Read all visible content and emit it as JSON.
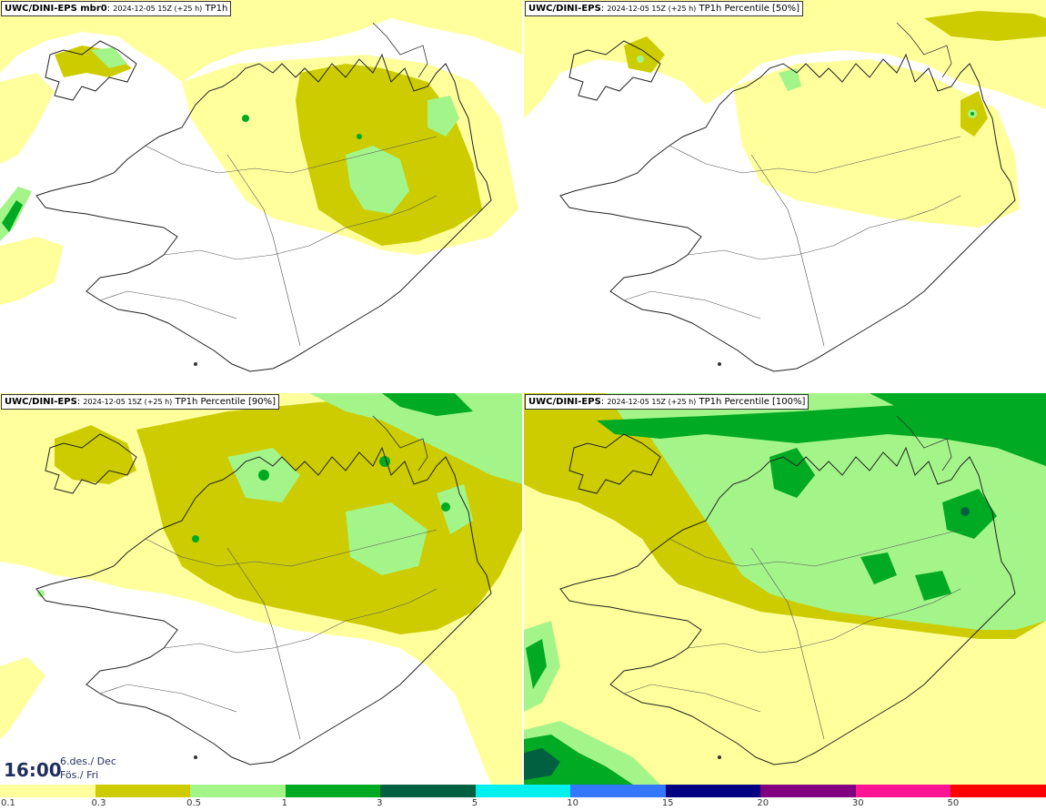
{
  "panels": [
    {
      "model": "UWC/DINI-EPS mbr0",
      "timestamp": "2024-12-05 15Z (+25 h)",
      "field": "TP1h"
    },
    {
      "model": "UWC/DINI-EPS",
      "timestamp": "2024-12-05 15Z (+25 h)",
      "field": "TP1h Percentile [50%]"
    },
    {
      "model": "UWC/DINI-EPS",
      "timestamp": "2024-12-05 15Z (+25 h)",
      "field": "TP1h Percentile [90%]"
    },
    {
      "model": "UWC/DINI-EPS",
      "timestamp": "2024-12-05 15Z (+25 h)",
      "field": "TP1h Percentile [100%]"
    }
  ],
  "valid_time": {
    "time": "16:00",
    "date_line": "6.des./ Dec",
    "day_line": "Fös./ Fri"
  },
  "legend": {
    "colors": [
      "#ffff9c",
      "#cccc00",
      "#a3f58a",
      "#00aa22",
      "#006040",
      "#00f0f0",
      "#3377ff",
      "#000080",
      "#800080",
      "#ff1493",
      "#ff0000"
    ],
    "ticks": [
      "0.1",
      "0.3",
      "0.5",
      "1",
      "3",
      "5",
      "10",
      "15",
      "20",
      "30",
      "50"
    ]
  }
}
